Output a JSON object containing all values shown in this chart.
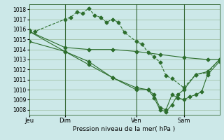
{
  "background_color": "#cce8e8",
  "grid_color": "#99bb99",
  "line_color": "#2d6e2d",
  "x_tick_labels": [
    "Jeu",
    "Dim",
    "Ven",
    "Sam"
  ],
  "x_tick_positions": [
    0,
    3,
    9,
    13
  ],
  "x_vlines": [
    3,
    9,
    13
  ],
  "ylim": [
    1007.5,
    1018.5
  ],
  "yticks": [
    1008,
    1009,
    1010,
    1011,
    1012,
    1013,
    1014,
    1015,
    1016,
    1017,
    1018
  ],
  "xlim": [
    0,
    16
  ],
  "xlabel": "Pression niveau de la mer( hPa )",
  "series": [
    {
      "x": [
        0,
        0.5,
        3,
        3.5,
        4,
        4.5,
        5,
        5.5,
        6,
        6.5,
        7,
        7.5,
        8,
        9,
        9.5,
        10,
        10.5,
        11,
        11.5,
        12,
        13,
        14,
        15,
        16
      ],
      "y": [
        1015.9,
        1015.8,
        1017.0,
        1017.2,
        1017.7,
        1017.6,
        1018.1,
        1017.4,
        1017.2,
        1016.7,
        1017.0,
        1016.7,
        1015.7,
        1014.8,
        1014.5,
        1013.7,
        1013.3,
        1012.7,
        1011.4,
        1011.1,
        1010.2,
        1011.5,
        1011.7,
        1013.0
      ],
      "style": "--",
      "marker": "D",
      "markersize": 2.5
    },
    {
      "x": [
        0,
        3,
        5,
        7,
        9,
        11,
        13,
        15,
        16
      ],
      "y": [
        1015.8,
        1014.2,
        1014.0,
        1014.0,
        1013.8,
        1013.5,
        1013.2,
        1013.0,
        1013.0
      ],
      "style": "-",
      "marker": "D",
      "markersize": 2.5
    },
    {
      "x": [
        0,
        3,
        5,
        7,
        9,
        10,
        10.5,
        11,
        11.5,
        12,
        12.5,
        13,
        13.5,
        14,
        14.5,
        15,
        16
      ],
      "y": [
        1014.8,
        1013.8,
        1012.8,
        1011.2,
        1010.0,
        1010.0,
        1009.5,
        1008.2,
        1008.0,
        1009.5,
        1009.2,
        1009.0,
        1009.3,
        1009.5,
        1009.8,
        1011.5,
        1012.8
      ],
      "style": "-",
      "marker": "D",
      "markersize": 2.5
    },
    {
      "x": [
        0,
        3,
        5,
        7,
        9,
        10,
        10.5,
        11,
        11.5,
        12,
        12.5,
        13,
        14,
        15,
        16
      ],
      "y": [
        1015.8,
        1013.8,
        1012.5,
        1011.2,
        1010.2,
        1010.0,
        1009.2,
        1008.0,
        1007.8,
        1008.5,
        1009.5,
        1010.0,
        1011.5,
        1011.8,
        1013.0
      ],
      "style": "-",
      "marker": "D",
      "markersize": 2.5
    }
  ]
}
